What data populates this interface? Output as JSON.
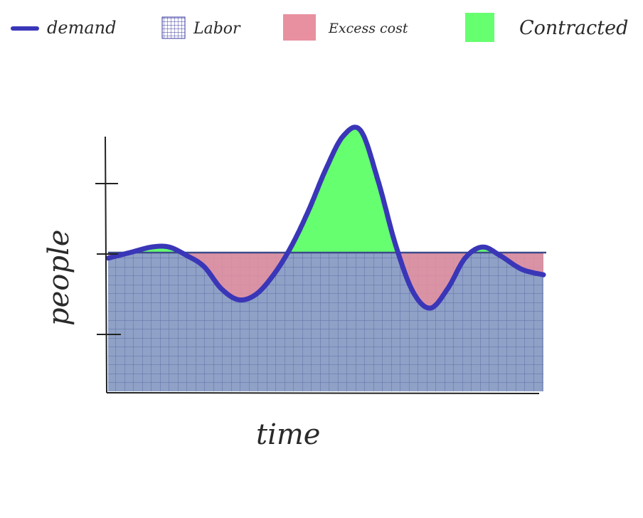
{
  "legend": {
    "demand": "demand",
    "labor": "Labor",
    "excess": "Excess cost",
    "contracted": "Contracted"
  },
  "colors": {
    "demand": "#3a36b8",
    "labor_fill": "#8fa1c6",
    "labor_grid": "#4a5a9a",
    "excess": "#e8909f",
    "contracted": "#66ff70",
    "axis": "#222222"
  },
  "chart_data": {
    "type": "area",
    "title": "",
    "xlabel": "time",
    "ylabel": "people",
    "grid": true,
    "legend_position": "top",
    "labor_level": 0.5,
    "ylim": [
      0,
      1
    ],
    "xlim": [
      0,
      1
    ],
    "demand": {
      "x": [
        0,
        0.05,
        0.1,
        0.14,
        0.18,
        0.22,
        0.26,
        0.3,
        0.34,
        0.38,
        0.42,
        0.46,
        0.5,
        0.54,
        0.58,
        0.62,
        0.66,
        0.7,
        0.74,
        0.78,
        0.82,
        0.86,
        0.9,
        0.95,
        1.0
      ],
      "y": [
        0.48,
        0.5,
        0.52,
        0.52,
        0.49,
        0.45,
        0.37,
        0.33,
        0.35,
        0.42,
        0.52,
        0.65,
        0.8,
        0.92,
        0.94,
        0.76,
        0.53,
        0.36,
        0.3,
        0.37,
        0.48,
        0.52,
        0.49,
        0.44,
        0.42
      ]
    },
    "series": [
      {
        "name": "demand",
        "kind": "line"
      },
      {
        "name": "Labor",
        "kind": "area"
      },
      {
        "name": "Excess cost",
        "kind": "area"
      },
      {
        "name": "Contracted",
        "kind": "area"
      }
    ]
  }
}
